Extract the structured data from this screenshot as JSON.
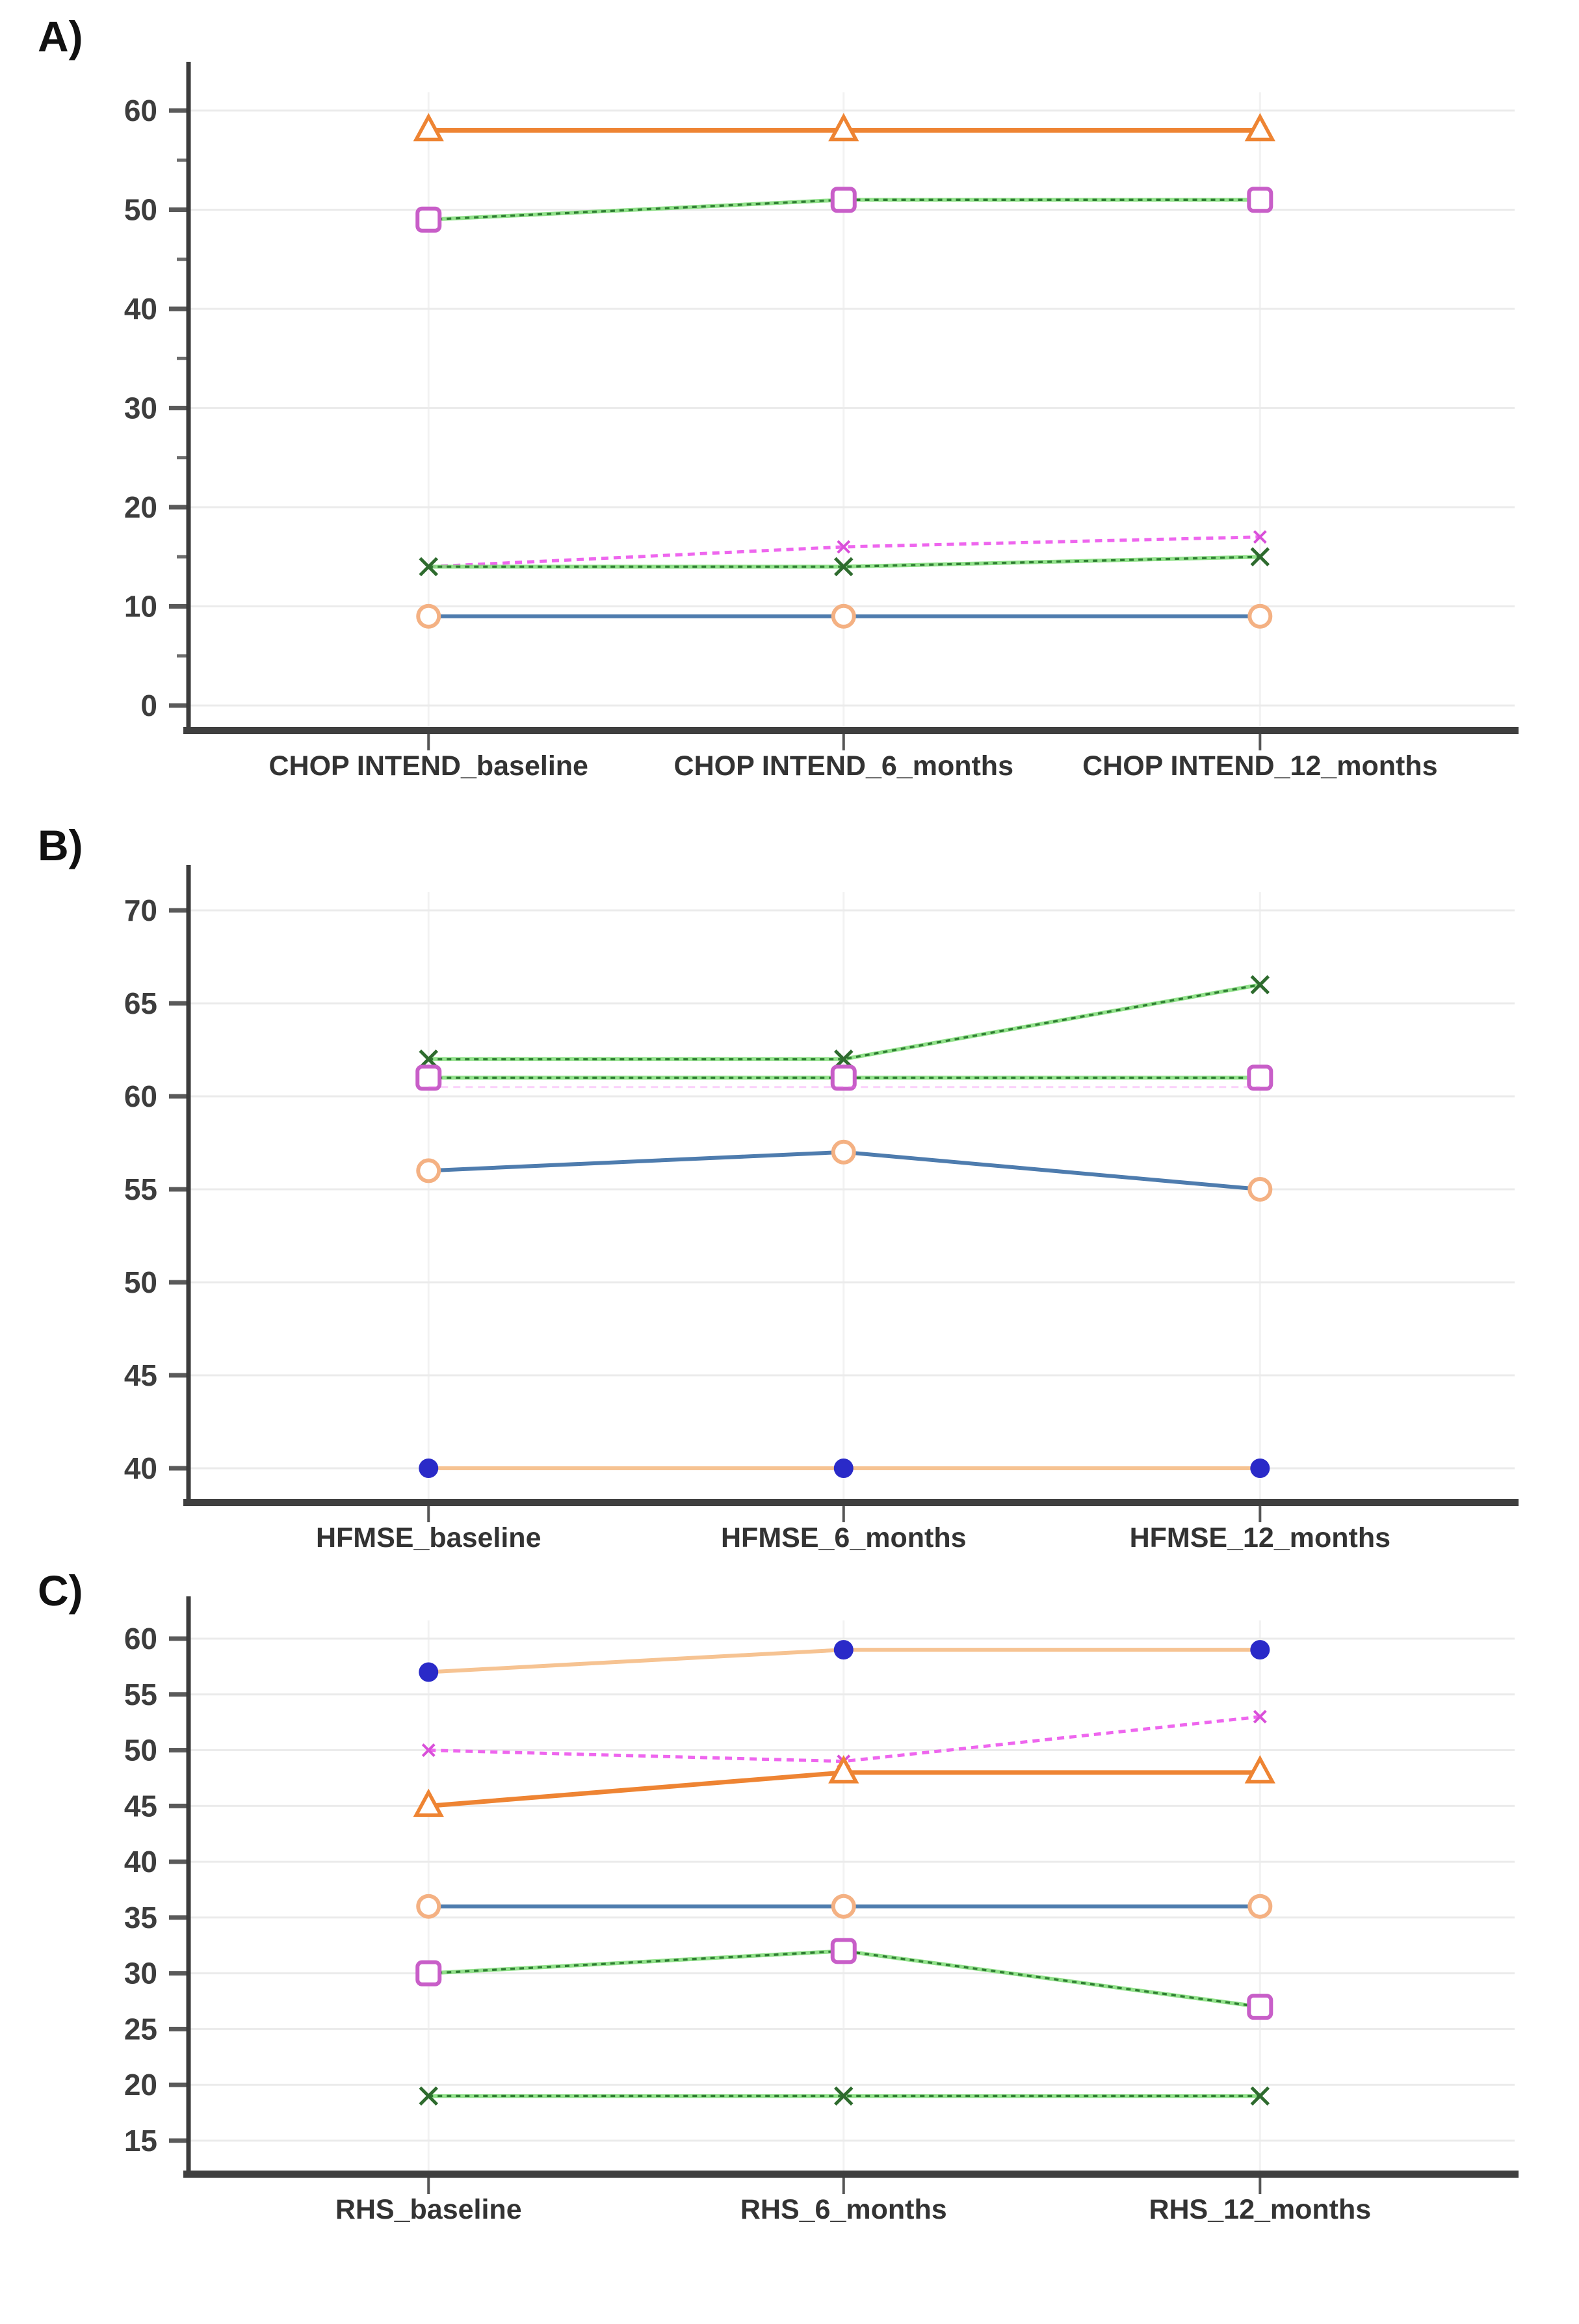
{
  "figure": {
    "panels": [
      {
        "label": "A)"
      },
      {
        "label": "B)"
      },
      {
        "label": "C)"
      }
    ],
    "accent_colors": {
      "orange": "#ee8433",
      "peach": "#f6c392",
      "blue": "#4e7cae",
      "navy": "#2a2ac8",
      "green_light": "#7fdc77",
      "green_dark": "#2e7d32",
      "magenta": "#ee66ee",
      "magenta_marker": "#c85ec8",
      "axis": "#3b3b3b",
      "gridline": "#ebebeb"
    }
  },
  "chart_data": [
    {
      "id": "chart-a",
      "type": "line",
      "title": "",
      "xlabel": "",
      "ylabel": "",
      "categories": [
        "CHOP INTEND_baseline",
        "CHOP INTEND_6_months",
        "CHOP INTEND_12_months"
      ],
      "ylim": [
        0,
        60
      ],
      "yticks": [
        0,
        10,
        20,
        30,
        40,
        50,
        60
      ],
      "minor_ticks": [
        5,
        15,
        25,
        35,
        45,
        55
      ],
      "grid": "horizontal",
      "legend": "none",
      "series": [
        {
          "name": "orange-triangle",
          "values": [
            58,
            58,
            58
          ],
          "color": "#ee8433",
          "style": "solid",
          "width": 7,
          "marker": "triangle-open",
          "marker_color": "#ee8433",
          "opacity": 1
        },
        {
          "name": "green-dash-square",
          "values": [
            49,
            51,
            51
          ],
          "color": "#7fdc77",
          "style": "duo",
          "color2": "#2e7d32",
          "marker": "square-open",
          "marker_color": "#c85ec8",
          "opacity": 1
        },
        {
          "name": "magenta-dash",
          "values": [
            14,
            16,
            17
          ],
          "color": "#ee66ee",
          "style": "dashed",
          "width": 5,
          "marker": "x-small",
          "marker_color": "#d94fd9",
          "opacity": 1
        },
        {
          "name": "green-dash-x",
          "values": [
            14,
            14,
            15
          ],
          "color": "#7fdc77",
          "style": "duo",
          "color2": "#2e7d32",
          "marker": "x",
          "marker_color": "#2e6b2e",
          "opacity": 1
        },
        {
          "name": "blue-circle",
          "values": [
            9,
            9,
            9
          ],
          "color": "#4e7cae",
          "style": "solid",
          "width": 6,
          "marker": "circle-open",
          "marker_color": "#f4b183",
          "opacity": 1
        }
      ]
    },
    {
      "id": "chart-b",
      "type": "line",
      "title": "",
      "xlabel": "",
      "ylabel": "",
      "categories": [
        "HFMSE_baseline",
        "HFMSE_6_months",
        "HFMSE_12_months"
      ],
      "ylim": [
        40,
        70
      ],
      "yticks": [
        40,
        45,
        50,
        55,
        60,
        65,
        70
      ],
      "minor_ticks": [],
      "grid": "horizontal",
      "legend": "none",
      "series": [
        {
          "name": "green-dash-x",
          "values": [
            62,
            62,
            66
          ],
          "color": "#7fdc77",
          "style": "duo",
          "color2": "#2e7d32",
          "marker": "x",
          "marker_color": "#2e6b2e",
          "opacity": 1
        },
        {
          "name": "green-dash-square",
          "values": [
            61,
            61,
            61
          ],
          "color": "#7fdc77",
          "style": "duo",
          "color2": "#2e7d32",
          "marker": "square-open",
          "marker_color": "#c85ec8",
          "opacity": 1
        },
        {
          "name": "magenta-dash-faint",
          "values": [
            60.5,
            60.5,
            60.5
          ],
          "color": "#ee66ee",
          "style": "dashed",
          "width": 3,
          "marker": "none",
          "marker_color": "#ee66ee",
          "opacity": 0.3
        },
        {
          "name": "blue-circle",
          "values": [
            56,
            57,
            55
          ],
          "color": "#4e7cae",
          "style": "solid",
          "width": 6,
          "marker": "circle-open",
          "marker_color": "#f4b183",
          "opacity": 1
        },
        {
          "name": "peach-navy-dot",
          "values": [
            40,
            40,
            40
          ],
          "color": "#f6c392",
          "style": "solid",
          "width": 6,
          "marker": "dot-filled",
          "marker_color": "#2a2ac8",
          "opacity": 1
        }
      ]
    },
    {
      "id": "chart-c",
      "type": "line",
      "title": "",
      "xlabel": "",
      "ylabel": "",
      "categories": [
        "RHS_baseline",
        "RHS_6_months",
        "RHS_12_months"
      ],
      "ylim": [
        15,
        60
      ],
      "yticks": [
        15,
        20,
        25,
        30,
        35,
        40,
        45,
        50,
        55,
        60
      ],
      "minor_ticks": [],
      "grid": "horizontal",
      "legend": "none",
      "series": [
        {
          "name": "peach-navy-dot",
          "values": [
            57,
            59,
            59
          ],
          "color": "#f6c392",
          "style": "solid",
          "width": 6,
          "marker": "dot-filled",
          "marker_color": "#2a2ac8",
          "opacity": 1
        },
        {
          "name": "magenta-dash",
          "values": [
            50,
            49,
            53
          ],
          "color": "#ee66ee",
          "style": "dashed",
          "width": 5,
          "marker": "x-small",
          "marker_color": "#d94fd9",
          "opacity": 1
        },
        {
          "name": "orange-triangle",
          "values": [
            45,
            48,
            48
          ],
          "color": "#ee8433",
          "style": "solid",
          "width": 7,
          "marker": "triangle-open",
          "marker_color": "#ee8433",
          "opacity": 1
        },
        {
          "name": "blue-circle",
          "values": [
            36,
            36,
            36
          ],
          "color": "#4e7cae",
          "style": "solid",
          "width": 6,
          "marker": "circle-open",
          "marker_color": "#f4b183",
          "opacity": 1
        },
        {
          "name": "green-dash-square",
          "values": [
            30,
            32,
            27
          ],
          "color": "#7fdc77",
          "style": "duo",
          "color2": "#2e7d32",
          "marker": "square-open",
          "marker_color": "#c85ec8",
          "opacity": 1
        },
        {
          "name": "green-dash-x",
          "values": [
            19,
            19,
            19
          ],
          "color": "#7fdc77",
          "style": "duo",
          "color2": "#2e7d32",
          "marker": "x",
          "marker_color": "#2e6b2e",
          "opacity": 1
        }
      ]
    }
  ]
}
